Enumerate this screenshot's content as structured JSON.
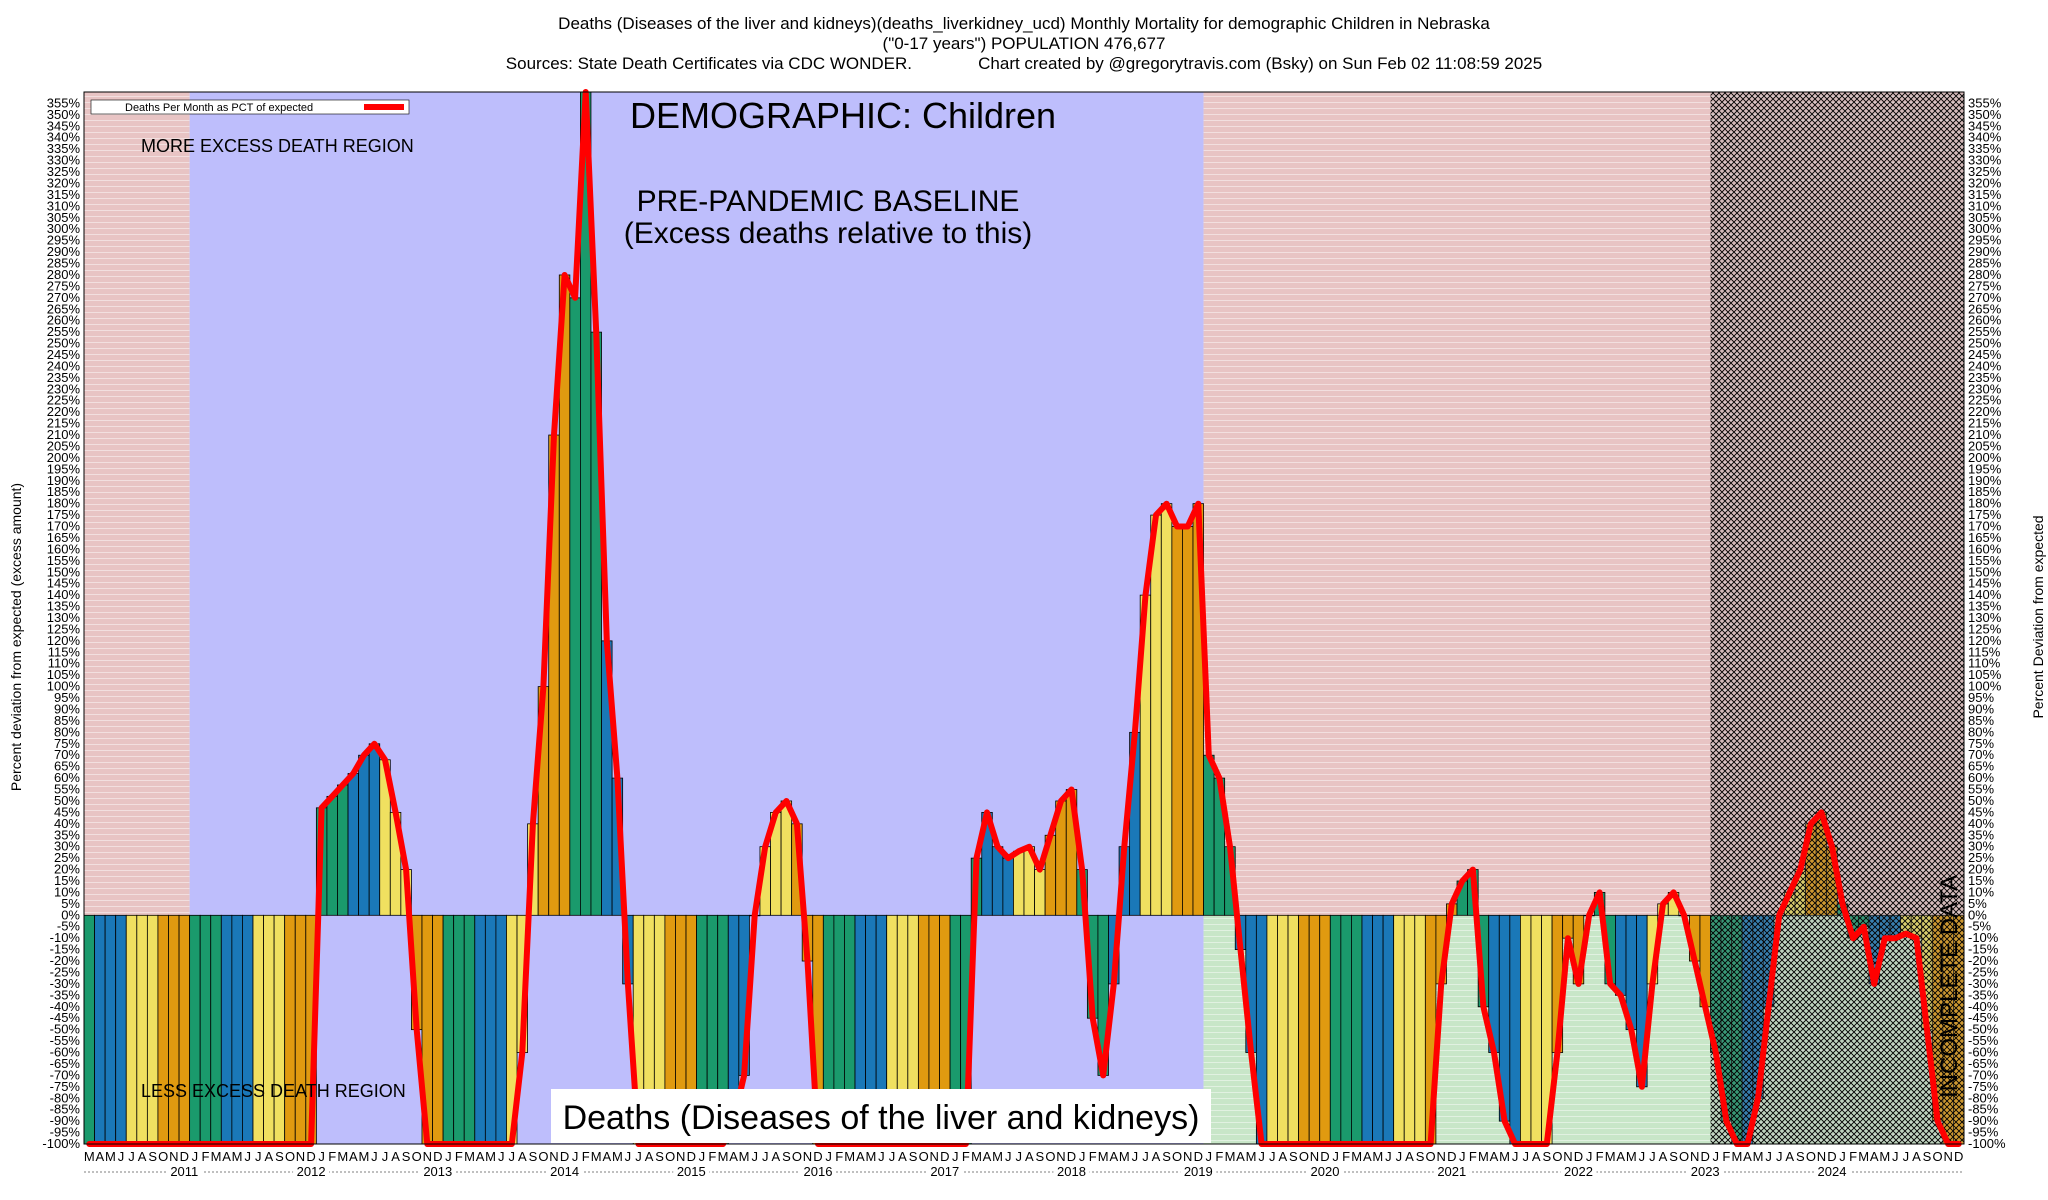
{
  "header": {
    "title_line1": "Deaths (Diseases of the liver and kidneys)(deaths_liverkidney_ucd) Monthly Mortality for demographic Children in Nebraska",
    "title_line2": "(\"0-17 years\") POPULATION 476,677",
    "title_line3": "Sources: State Death Certificates via CDC WONDER.              Chart created by @gregorytravis.com (Bsky) on Sun Feb 02 11:08:59 2025"
  },
  "annotations": {
    "demographic": "DEMOGRAPHIC: Children",
    "baseline_1": "PRE-PANDEMIC BASELINE",
    "baseline_2": "(Excess deaths relative to this)",
    "more_region": "MORE EXCESS DEATH REGION",
    "less_region": "LESS EXCESS DEATH REGION",
    "incomplete": "INCOMPLETE DATA",
    "bottom_label": "Deaths (Diseases of the liver and kidneys)"
  },
  "colors": {
    "more_region": "#e8c4c4",
    "baseline": "#bebefc",
    "below_fill": "#c8e6c8",
    "line": "#ff0000",
    "bar_palette": [
      "#1a9a6c",
      "#1a78b8",
      "#f0e060",
      "#e09a10"
    ]
  },
  "chart_data": {
    "type": "bar",
    "title": "Deaths (Diseases of the liver and kidneys)(deaths_liverkidney_ucd) Monthly Mortality for demographic Children in Nebraska",
    "ylabel_left": "Percent deviation from expected (excess amount)",
    "ylabel_right": "Percent Deviation from expected",
    "legend": [
      "Deaths Per Month as PCT of expected"
    ],
    "legend_position": "top-left",
    "ylim": [
      -100,
      360
    ],
    "y_tick_step": 5,
    "x_start": "2011-03",
    "x_end": "2024-12",
    "baseline_period": [
      "2012-01",
      "2019-12"
    ],
    "incomplete_from": "2024-01",
    "month_initials": [
      "J",
      "F",
      "M",
      "A",
      "M",
      "J",
      "J",
      "A",
      "S",
      "O",
      "N",
      "D"
    ],
    "year_labels": [
      "2011",
      "2012",
      "2013",
      "2014",
      "2015",
      "2016",
      "2017",
      "2018",
      "2019",
      "2020",
      "2021",
      "2022",
      "2023",
      "2024"
    ],
    "values": [
      -100,
      -100,
      -100,
      -100,
      -100,
      -100,
      -100,
      -100,
      -100,
      -100,
      -100,
      -100,
      -100,
      -100,
      -100,
      -100,
      -100,
      -100,
      -100,
      -100,
      -100,
      -100,
      47,
      52,
      57,
      62,
      70,
      75,
      68,
      45,
      20,
      -50,
      -100,
      -100,
      -100,
      -100,
      -100,
      -100,
      -100,
      -100,
      -100,
      -60,
      40,
      100,
      210,
      280,
      270,
      360,
      255,
      120,
      60,
      -30,
      -100,
      -100,
      -100,
      -100,
      -100,
      -100,
      -100,
      -100,
      -100,
      -90,
      -70,
      0,
      30,
      45,
      50,
      40,
      -20,
      -100,
      -100,
      -100,
      -100,
      -100,
      -100,
      -100,
      -100,
      -100,
      -100,
      -100,
      -100,
      -100,
      -100,
      -100,
      25,
      45,
      30,
      25,
      28,
      30,
      20,
      35,
      50,
      55,
      20,
      -45,
      -70,
      -30,
      30,
      80,
      140,
      175,
      180,
      170,
      170,
      180,
      70,
      60,
      30,
      -15,
      -60,
      -100,
      -100,
      -100,
      -100,
      -100,
      -100,
      -100,
      -100,
      -100,
      -100,
      -100,
      -100,
      -100,
      -100,
      -100,
      -100,
      -100,
      -30,
      5,
      15,
      20,
      -40,
      -60,
      -90,
      -100,
      -100,
      -100,
      -100,
      -60,
      -10,
      -30,
      0,
      10,
      -30,
      -35,
      -50,
      -75,
      -30,
      5,
      10,
      0,
      -20,
      -40,
      -60,
      -90,
      -100,
      -100,
      -80,
      -40,
      0,
      10,
      20,
      40,
      45,
      30,
      5,
      -10,
      -5,
      -30,
      -10,
      -10,
      -8,
      -10,
      -50,
      -90,
      -100,
      -100
    ]
  }
}
